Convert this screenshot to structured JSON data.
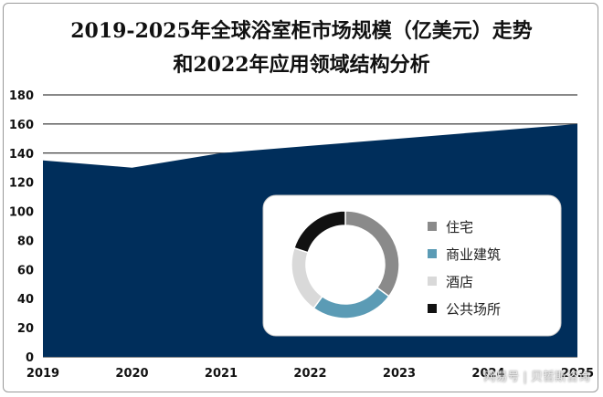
{
  "title_line1": "2019-2025年全球浴室柜市场规模（亿美元）走势",
  "title_line2": "和2022年应用领域结构分析",
  "watermark": "网易号 | 贝哲斯咨询",
  "chart_data": [
    {
      "type": "area",
      "x": [
        "2019",
        "2020",
        "2021",
        "2022",
        "2023",
        "2024",
        "2025"
      ],
      "values": [
        135,
        130,
        140,
        145,
        150,
        155,
        160
      ],
      "ylim": [
        0,
        180
      ],
      "yticks": [
        0,
        20,
        40,
        60,
        80,
        100,
        120,
        140,
        160,
        180
      ],
      "grid": true,
      "color": "#002e5b"
    },
    {
      "type": "pie",
      "donut": true,
      "labels": [
        "住宅",
        "商业建筑",
        "酒店",
        "公共场所"
      ],
      "values": [
        35,
        25,
        20,
        20
      ],
      "colors": [
        "#8a8a8a",
        "#5b9bb5",
        "#d9d9d9",
        "#111111"
      ],
      "legend": "right"
    }
  ]
}
